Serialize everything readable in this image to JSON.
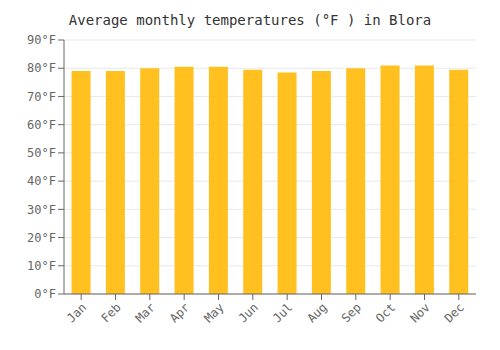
{
  "chart_data": {
    "type": "bar",
    "title": "Average monthly temperatures (°F ) in Blora",
    "categories": [
      "Jan",
      "Feb",
      "Mar",
      "Apr",
      "May",
      "Jun",
      "Jul",
      "Aug",
      "Sep",
      "Oct",
      "Nov",
      "Dec"
    ],
    "values": [
      79,
      79,
      80,
      80.5,
      80.5,
      79.5,
      78.5,
      79,
      80,
      81,
      81,
      79.5
    ],
    "color": "#FFC020",
    "ylim": [
      0,
      90
    ],
    "yticks": [
      {
        "value": 0,
        "label": "0°F"
      },
      {
        "value": 10,
        "label": "10°F"
      },
      {
        "value": 20,
        "label": "20°F"
      },
      {
        "value": 30,
        "label": "30°F"
      },
      {
        "value": 40,
        "label": "40°F"
      },
      {
        "value": 50,
        "label": "50°F"
      },
      {
        "value": 60,
        "label": "60°F"
      },
      {
        "value": 70,
        "label": "70°F"
      },
      {
        "value": 80,
        "label": "80°F"
      },
      {
        "value": 90,
        "label": "90°F"
      }
    ],
    "grid": true
  }
}
